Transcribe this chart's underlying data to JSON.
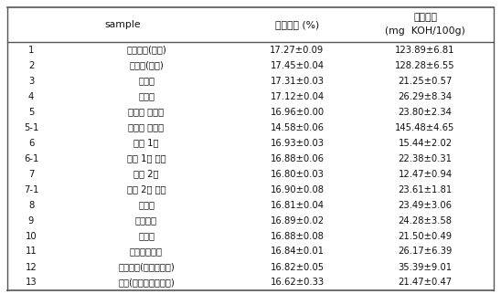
{
  "col_headers_line1": [
    "",
    "sample",
    "수분함량 (%)",
    "지방산가"
  ],
  "col_headers_line2": [
    "",
    "",
    "",
    "(mg  KOH/100g)"
  ],
  "rows": [
    [
      "1",
      "저장킱크(현미)",
      "17.27±0.09",
      "123.89±6.81"
    ],
    [
      "2",
      "연류계(현미)",
      "17.45±0.04",
      "128.28±6.55"
    ],
    [
      "3",
      "정미단",
      "17.31±0.03",
      "21.25±0.57"
    ],
    [
      "4",
      "연미기",
      "17.12±0.04",
      "26.29±8.34"
    ],
    [
      "5",
      "로터리 쉼프트",
      "16.96±0.00",
      "23.80±2.34"
    ],
    [
      "5-1",
      "로터리 싸라기",
      "14.58±0.06",
      "145.48±4.65"
    ],
    [
      "6",
      "색체 1단",
      "16.93±0.03",
      "15.44±2.02"
    ],
    [
      "6-1",
      "색체 1단 이물",
      "16.88±0.06",
      "22.38±0.31"
    ],
    [
      "7",
      "색체 2단",
      "16.80±0.03",
      "12.47±0.94"
    ],
    [
      "7-1",
      "색체 2단 이물",
      "16.90±0.08",
      "23.61±1.81"
    ],
    [
      "8",
      "연류계",
      "16.81±0.04",
      "23.49±3.06"
    ],
    [
      "9",
      "제품킱크",
      "16.89±0.02",
      "24.28±3.58"
    ],
    [
      "10",
      "연류계",
      "16.88±0.08",
      "21.50±0.49"
    ],
    [
      "11",
      "진동체선별기",
      "16.84±0.01",
      "26.17±6.39"
    ],
    [
      "12",
      "홍선별기(등급선별기)",
      "16.82±0.05",
      "35.39±9.01"
    ],
    [
      "13",
      "최종(자동지대포장기)",
      "16.62±0.33",
      "21.47±0.47"
    ]
  ],
  "bg_color": "#ffffff",
  "line_color": "#555555",
  "text_color": "#111111",
  "font_size": 7.2,
  "header_font_size": 7.8
}
